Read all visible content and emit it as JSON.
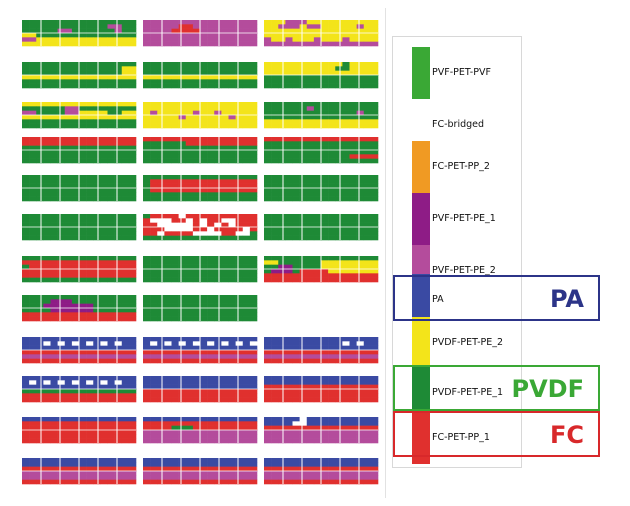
{
  "legend": {
    "items": [
      {
        "label": "PVF-PET-PVF",
        "color": "#3aa835"
      },
      {
        "label": "FC-bridged",
        "color": "#ffffff"
      },
      {
        "label": "FC-PET-PP_2",
        "color": "#f09a23"
      },
      {
        "label": "PVF-PET-PE_1",
        "color": "#8e1c86"
      },
      {
        "label": "PVF-PET-PE_2",
        "color": "#b44c9c"
      },
      {
        "label": "PA",
        "color": "#3a4aa3"
      },
      {
        "label": "PVDF-PET-PE_2",
        "color": "#f3e41a"
      },
      {
        "label": "PVDF-PET-PE_1",
        "color": "#1e8a36"
      },
      {
        "label": "FC-PET-PP_1",
        "color": "#e0302e"
      }
    ]
  },
  "callouts": [
    {
      "text": "PA",
      "color": "#2c3488"
    },
    {
      "text": "PVDF",
      "color": "#3aa835"
    },
    {
      "text": "FC",
      "color": "#d8282a"
    }
  ],
  "colors": {
    "G": "#1e8a36",
    "R": "#e0302e",
    "Y": "#f3e41a",
    "M": "#b44c9c",
    "P": "#8e1c86",
    "B": "#3a4aa3",
    "W": "#ffffff"
  },
  "modules": [
    {
      "name": "row1-a",
      "rows": [
        "GGGGGGGGGGGGGGGG",
        "GGGGGGGGGGGGMMGG",
        "GGGGGMMGGGGGGMGG",
        "YYGGGGGGGGGGGGGG",
        "MMYYYYYYYYYYYYYY",
        "YYYYYYYYYYYYYYYY"
      ]
    },
    {
      "name": "row1-b",
      "rows": [
        "MMMMMMMMMMMMMMMM",
        "MMMMMRRMMMMMMMMM",
        "MMMMRRRRMMMMMMMM",
        "MMMMMMMMMMMMMMMM",
        "MMMMMMMMMMMMMMMM",
        "MMMMMMMMMMMMMMMM"
      ]
    },
    {
      "name": "row1-c",
      "rows": [
        "YYYMMMYYYYYYYYYY",
        "YYMMMYMMYYYYYMYY",
        "YYYYYYYYYYYYYYYY",
        "YYYYYYYYYYYYYYYY",
        "MYYMYYYMYYYMYYYY",
        "MMMMMMMMMMMMMMMM"
      ]
    },
    {
      "name": "row2-a",
      "rows": [
        "GGGGGGGGGGGGGGGG",
        "GGGGGGGGGGGGGGYY",
        "GGGGGGGGGGGGGGYY",
        "YYYYYYYYYYYYYYYY",
        "GGGGGGGGGGGGGGGG",
        "GGGGGGGGGGGGGGGG"
      ]
    },
    {
      "name": "row2-b",
      "rows": [
        "GGGGGGGGGGGGGGGG",
        "GGGGGGGGGGGGGGGG",
        "GGGGGGGGGGGGGGGG",
        "YYYYYYYYYYYYYYYY",
        "GGGGGGGGGGGGGGGG",
        "GGGGGGGGGGGGGGGG"
      ]
    },
    {
      "name": "row2-c",
      "rows": [
        "YYYYYYYYYYYGYYYY",
        "YYYYYYYYYYGGYYYY",
        "YYYYYYYYYYYYYYYY",
        "GGGGGGGGGGGGGGGG",
        "GGGGGGGGGGGGGGGG",
        "GGGGGGGGGGGGGGGG"
      ]
    },
    {
      "name": "row3-a",
      "rows": [
        "YYYYYYYYYYYYYYYY",
        "GGGGGGMMGGGGGGGG",
        "MMGGGGMMYYYYGGYY",
        "YYYYYYYYYYYYYYYY",
        "GGGGGGGGGGGGGGGG",
        "GGGGGGGGGGGGGGGG"
      ]
    },
    {
      "name": "row3-b",
      "rows": [
        "YYYYYYYYYYYYYYYY",
        "YYYYYYYYYYYYYYYY",
        "YMYYYYYMYYMYYYYY",
        "YYYYYMYYYYYYMYYY",
        "YYYYYYYYYYYYYYYY",
        "YYYYYYYYYYYYYYYY"
      ]
    },
    {
      "name": "row3-c",
      "rows": [
        "GGGGGGGGGGGGGGGG",
        "GGGGGGMGGGGGGGGG",
        "GGGGGGGGGGGGGMGG",
        "GGGGGGGGGGGGGGGG",
        "YYYYYYYYYYYYYYYY",
        "YYYYYYYYYYYYYYYY"
      ]
    },
    {
      "name": "row4-a",
      "rows": [
        "RRRRRRRRRRRRRRRR",
        "RRRRRRRRRRRRRRRR",
        "GGGGGGGGGGGGGGGG",
        "GGGGGGGGGGGGGGGG",
        "GGGGGGGGGGGGGGGG",
        "GGGGGGGGGGGGGGGG"
      ]
    },
    {
      "name": "row4-b",
      "rows": [
        "RRRRRRRRRRRRRRRR",
        "GGGGGGRRRRRRRRRR",
        "GGGGGGGGGGGGGGGG",
        "GGGGGGGGGGGGGGGG",
        "GGGGGGGGGGGGGGGG",
        "GGGGGGGGGGGGGGGG"
      ]
    },
    {
      "name": "row4-c",
      "rows": [
        "RRRRRRRRRRRRRRRR",
        "GGGGGGGGGGGGGGGG",
        "GGGGGGGGGGGGGGGG",
        "GGGGGGGGGGGGGGGG",
        "GGGGGGGGGGGGRRRR",
        "GGGGGGGGGGGGGGGG"
      ]
    },
    {
      "name": "row5-a",
      "rows": [
        "GGGGGGGGGGGGGGGG",
        "GGGGGGGGGGGGGGGG",
        "GGGGGGGGGGGGGGGG",
        "GGGGGGGGGGGGGGGG",
        "GGGGGGGGGGGGGGGG",
        "GGGGGGGGGGGGGGGG"
      ]
    },
    {
      "name": "row5-b",
      "rows": [
        "GGGGGGGGGGGGGGGG",
        "GRRRRRRRRRRRRRRR",
        "GRRRRRRRRRRRRRRR",
        "GRRRRRRRRRRRRRRR",
        "GGGGGGGGGGGGGGGG",
        "GGGGGGGGGGGGGGGG"
      ]
    },
    {
      "name": "row5-c",
      "rows": [
        "GGGGGGGGGGGGGGGG",
        "GGGGGGGGGGGGGGGG",
        "GGGGGGGGGGGGGGGG",
        "GGGGGGGGGGGGGGGG",
        "GGGGGGGGGGGGGGGG",
        "GGGGGGGGGGGGGGGG"
      ]
    },
    {
      "name": "row6-a",
      "rows": [
        "GGGGGGGGGGGGGGGG",
        "GGGGGGGGGGGGGGGG",
        "GGGGGGGGGGGGGGGG",
        "GGGGGGGGGGGGGGGG",
        "GGGGGGGGGGGGGGGG",
        "GGGGGGGGGGGGGGGG"
      ]
    },
    {
      "name": "row6-b",
      "rows": [
        "GRRRRWRRRRRRRRRR",
        "RWWWRRWRWRRWWRRR",
        "RRWWWWWRWRWRWRRR",
        "RRRWWWWRRWRRRRWR",
        "RRWRRRRWWWWRRWWG",
        "GGGGGGGGGGGGGGGG"
      ]
    },
    {
      "name": "row6-c",
      "rows": [
        "GGGGGGGGGGGGGGGG",
        "GGGGGGGGGGGGGGGG",
        "GGGGGGGGGGGGGGGG",
        "GGGGGGGGGGGGGGGG",
        "GGGGGGGGGGGGGGGG",
        "GGGGGGGGGGGGGGGG"
      ]
    },
    {
      "name": "row7-a",
      "rows": [
        "GGGGGGGGGGGGGGGG",
        "RRRRRRRRRRRRRRRR",
        "GRRRRRRRRRRRRRRR",
        "RRRRRRRRRRRRRRRR",
        "RRRRRRRRRRRRRRRR",
        "GGGGGGGGGGGGGGGG"
      ]
    },
    {
      "name": "row7-b",
      "rows": [
        "GGGGGGGGGGGGGGGG",
        "GGGGGGGGGGGGGGGG",
        "GGGGGGGGGGGGGGGG",
        "GGGGGGGGGGGGGGGG",
        "GGGGGGGGGGGGGGGG",
        "GGGGGGGGGGGGGGGG"
      ]
    },
    {
      "name": "row7-c",
      "rows": [
        "GGGGGGGGGGGGGGGG",
        "YYGGGGGGYYYYYYYY",
        "GGPPGGGGYYYYYYYY",
        "GPPPGRRRRYYYYYYY",
        "RRRRRRRRRRRRRRRR",
        "RRRRRRRRRRRRRRRR"
      ]
    },
    {
      "name": "row8-a",
      "rows": [
        "GGGGGGGGGGGGGGGG",
        "GGGGPPPGGGGGGGGG",
        "GGGPPPPPPPGGGGGG",
        "GGGGPPPPPPGGGGGG",
        "RRRRRRRRRRRRRRRR",
        "RRRRRRRRRRRRRRRR"
      ]
    },
    {
      "name": "row8-b",
      "rows": [
        "GGGGGGGGGGGGGGGG",
        "GGGGGGGGGGGGGGGG",
        "GGGGGGGGGGGGGGGG",
        "GGGGGGGGGGGGGGGG",
        "GGGGGGGGGGGGGGGG",
        "GGGGGGGGGGGGGGGG"
      ]
    },
    {
      "name": "row8-c",
      "rows": []
    },
    {
      "name": "row9-a",
      "rows": [
        "BBBBBBBBBBBBBBBB",
        "BBBWBWBWBWBWBWBB",
        "BBBBBBBBBBBBBBBB",
        "RRRRRRRRRRRRRRRR",
        "MMMMMMMMMMMMMMMM",
        "RRRRRRRRRRRRRRRR"
      ]
    },
    {
      "name": "row9-b",
      "rows": [
        "BBBBBBBBBBBBBBBB",
        "BWBWBWBWBWBWBWBW",
        "BBBBBBBBBBBBBBBB",
        "RRRRRRRRRRRRRRRR",
        "MMMMMMMMMMMMMMMM",
        "RRRRRRRRRRRRRRRR"
      ]
    },
    {
      "name": "row9-c",
      "rows": [
        "BBBBBBBBBBBBBBBB",
        "BBBBBBBBBBBWBWBB",
        "BBBBBBBBBBBBBBBB",
        "RRRRRRRRRRRRRRRR",
        "MMMMMMMMMMMMMMMM",
        "RRRRRRRRRRRRRRRR"
      ]
    },
    {
      "name": "row10-a",
      "rows": [
        "BBBBBBBBBBBBBBBB",
        "BWBWBWBWBWBWBWBB",
        "BBBBBBBBBBBBBBBB",
        "GGGGGGGGGGGGGGGG",
        "RRRRRRRRRRRRRRRR",
        "RRRRRRRRRRRRRRRR"
      ]
    },
    {
      "name": "row10-b",
      "rows": [
        "BBBBBBBBBBBBBBBB",
        "BBBBBBBBBBBBBBBB",
        "BBBBBBBBBBBBBBBB",
        "RRRRRRRRRRRRRRRR",
        "RRRRRRRRRRRRRRRR",
        "RRRRRRRRRRRRRRRR"
      ]
    },
    {
      "name": "row10-c",
      "rows": [
        "BBBBBBBBBBBBBBBB",
        "BBBBBBBBBBBBBBBB",
        "RRRRRRRRRRRRRRRR",
        "RRRRRRRRRRRRRRRR",
        "RRRRRRRRRRRRRRRR",
        "RRRRRRRRRRRRRRRR"
      ]
    },
    {
      "name": "row11-a",
      "rows": [
        "BBBBBBBBBBBBBBBB",
        "RRRRRRRRRRRRRRRR",
        "RRRRRRRRRRRRRRRR",
        "RRRRRRRRRRRRRRRR",
        "RRRRRRRRRRRRRRRR",
        "RRRRRRRRRRRRRRRR"
      ]
    },
    {
      "name": "row11-b",
      "rows": [
        "BBBBBBBBBBBBBBBB",
        "RRRRRRRRRRRRRRRR",
        "RRRRGGGRRRRRRRRR",
        "MMMMMMMMMMMMMMMM",
        "MMMMMMMMMMMMMMMM",
        "MMMMMMMMMMMMMMMM"
      ]
    },
    {
      "name": "row11-c",
      "rows": [
        "BBBBBWBBBBBBBBBB",
        "BBBBWWBBBBBBBBBB",
        "RRRRRRRRRRRRRRRR",
        "MMMMMMMMMMMMMMMM",
        "MMMMMMMMMMMMMMMM",
        "MMMMMMMMMMMMMMMM"
      ]
    },
    {
      "name": "row12-a",
      "rows": [
        "BBBBBBBBBBBBBBBB",
        "BBBBBBBBBBBBBBBB",
        "RRRRRRRRRRRRRRRR",
        "MMMMMMMMMMMMMMMM",
        "MMMMMMMMMMMMMMMM",
        "RRRRRRRRRRRRRRRR"
      ]
    },
    {
      "name": "row12-b",
      "rows": [
        "BBBBBBBBBBBBBBBB",
        "BBBBBBBBBBBBBBBB",
        "RRRRRRRRRRRRRRRR",
        "MMMMMMMMMMMMMMMM",
        "MMMMMMMMMMMMMMMM",
        "RRRRRRRRRRRRRRRR"
      ]
    },
    {
      "name": "row12-c",
      "rows": [
        "BBBBBBBBBBBBBBBB",
        "BBBBBBBBBBBBBBBB",
        "RRRRRRRRRRRRRRRR",
        "MMMMMMMMMMMMMMMM",
        "MMMMMMMMMMMMMMMM",
        "RRRRRRRRRRRRRRRR"
      ]
    }
  ]
}
